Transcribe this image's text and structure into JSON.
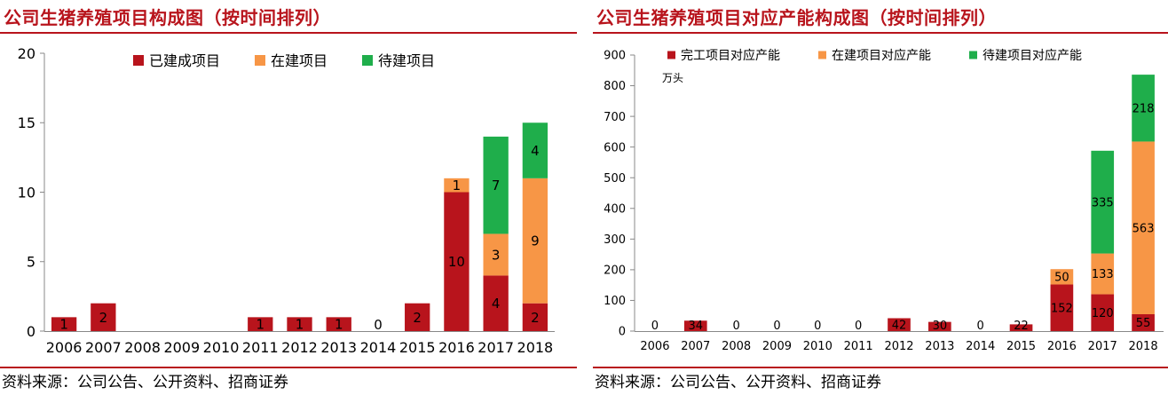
{
  "left": {
    "title": "公司生猪养殖项目构成图（按时间排列）",
    "source": "资料来源：公司公告、公开资料、招商证券"
  },
  "right": {
    "title": "公司生猪养殖项目对应产能构成图（按时间排列）",
    "source": "资料来源：公司公告、公开资料、招商证券"
  },
  "chart_data": [
    {
      "type": "bar",
      "stacked": true,
      "title": "公司生猪养殖项目构成图（按时间排列）",
      "categories": [
        "2006",
        "2007",
        "2008",
        "2009",
        "2010",
        "2011",
        "2012",
        "2013",
        "2014",
        "2015",
        "2016",
        "2017",
        "2018"
      ],
      "series": [
        {
          "name": "已建成项目",
          "color": "#b8141c",
          "values": [
            1,
            2,
            0,
            0,
            0,
            1,
            1,
            1,
            0,
            2,
            10,
            4,
            2
          ]
        },
        {
          "name": "在建项目",
          "color": "#f79646",
          "values": [
            0,
            0,
            0,
            0,
            0,
            0,
            0,
            0,
            0,
            0,
            1,
            3,
            9
          ]
        },
        {
          "name": "待建项目",
          "color": "#1fae4b",
          "values": [
            0,
            0,
            0,
            0,
            0,
            0,
            0,
            0,
            0,
            0,
            0,
            7,
            4
          ]
        }
      ],
      "ylim": [
        0,
        20
      ],
      "yticks": [
        0,
        5,
        10,
        15,
        20
      ],
      "zero_label_categories": [
        "2014"
      ],
      "legend": "top-right",
      "grid": false
    },
    {
      "type": "bar",
      "stacked": true,
      "title": "公司生猪养殖项目对应产能构成图（按时间排列）",
      "categories": [
        "2006",
        "2007",
        "2008",
        "2009",
        "2010",
        "2011",
        "2012",
        "2013",
        "2014",
        "2015",
        "2016",
        "2017",
        "2018"
      ],
      "series": [
        {
          "name": "完工项目对应产能",
          "color": "#b8141c",
          "values": [
            0,
            34,
            0,
            0,
            0,
            0,
            42,
            30,
            0,
            22,
            152,
            120,
            55
          ]
        },
        {
          "name": "在建项目对应产能",
          "color": "#f79646",
          "values": [
            0,
            0,
            0,
            0,
            0,
            0,
            0,
            0,
            0,
            0,
            50,
            133,
            563
          ]
        },
        {
          "name": "待建项目对应产能",
          "color": "#1fae4b",
          "values": [
            0,
            0,
            0,
            0,
            0,
            0,
            0,
            0,
            0,
            0,
            0,
            335,
            218
          ]
        }
      ],
      "unit_label": "万头",
      "ylim": [
        0,
        900
      ],
      "yticks": [
        0,
        100,
        200,
        300,
        400,
        500,
        600,
        700,
        800,
        900
      ],
      "zero_label_categories": [
        "2006",
        "2008",
        "2009",
        "2010",
        "2011",
        "2014"
      ],
      "legend": "top-right",
      "grid": false
    }
  ]
}
